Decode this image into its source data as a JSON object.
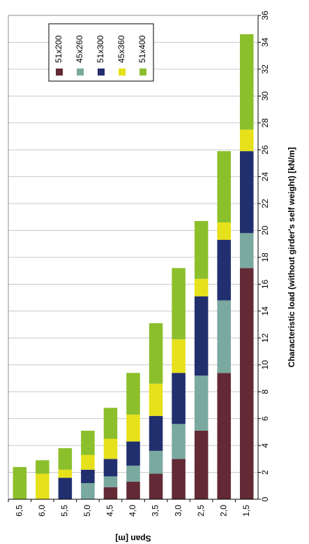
{
  "chart_data": {
    "type": "bar",
    "orientation": "stacked, rotated",
    "categories": [
      "6,5",
      "6,0",
      "5,5",
      "5,0",
      "4,5",
      "4,0",
      "3,5",
      "3,0",
      "2,5",
      "2,0",
      "1,5"
    ],
    "xlabel": "Span [m]",
    "ylabel": "Characteristic load (without girder's self weight) [kN/m]",
    "ylim": [
      0,
      36
    ],
    "yticks": [
      "0",
      "2",
      "4",
      "6",
      "8",
      "10",
      "12",
      "14",
      "16",
      "18",
      "20",
      "22",
      "24",
      "26",
      "28",
      "30",
      "32",
      "34",
      "36"
    ],
    "grid": true,
    "legend_position": "top-left",
    "series": [
      {
        "name": "51x200",
        "color": "#632a35",
        "values": [
          0,
          0,
          0,
          0,
          0.9,
          1.3,
          1.9,
          3.0,
          5.1,
          9.4,
          17.2
        ]
      },
      {
        "name": "45x260",
        "color": "#7aa9a0",
        "values": [
          0,
          0,
          0,
          1.2,
          0.8,
          1.2,
          1.7,
          2.6,
          4.1,
          5.4,
          2.6
        ]
      },
      {
        "name": "51x300",
        "color": "#212f6e",
        "values": [
          0,
          0,
          1.6,
          1.0,
          1.3,
          1.8,
          2.6,
          3.8,
          5.9,
          4.5,
          6.1
        ]
      },
      {
        "name": "45x360",
        "color": "#e6e11b",
        "values": [
          0,
          1.9,
          0.6,
          1.1,
          1.5,
          2.0,
          2.4,
          2.5,
          1.3,
          1.3,
          1.6
        ]
      },
      {
        "name": "51x400",
        "color": "#8cbf2c",
        "values": [
          2.4,
          1.0,
          1.6,
          1.8,
          2.3,
          3.1,
          4.5,
          5.3,
          4.3,
          5.3,
          7.1
        ]
      }
    ]
  }
}
